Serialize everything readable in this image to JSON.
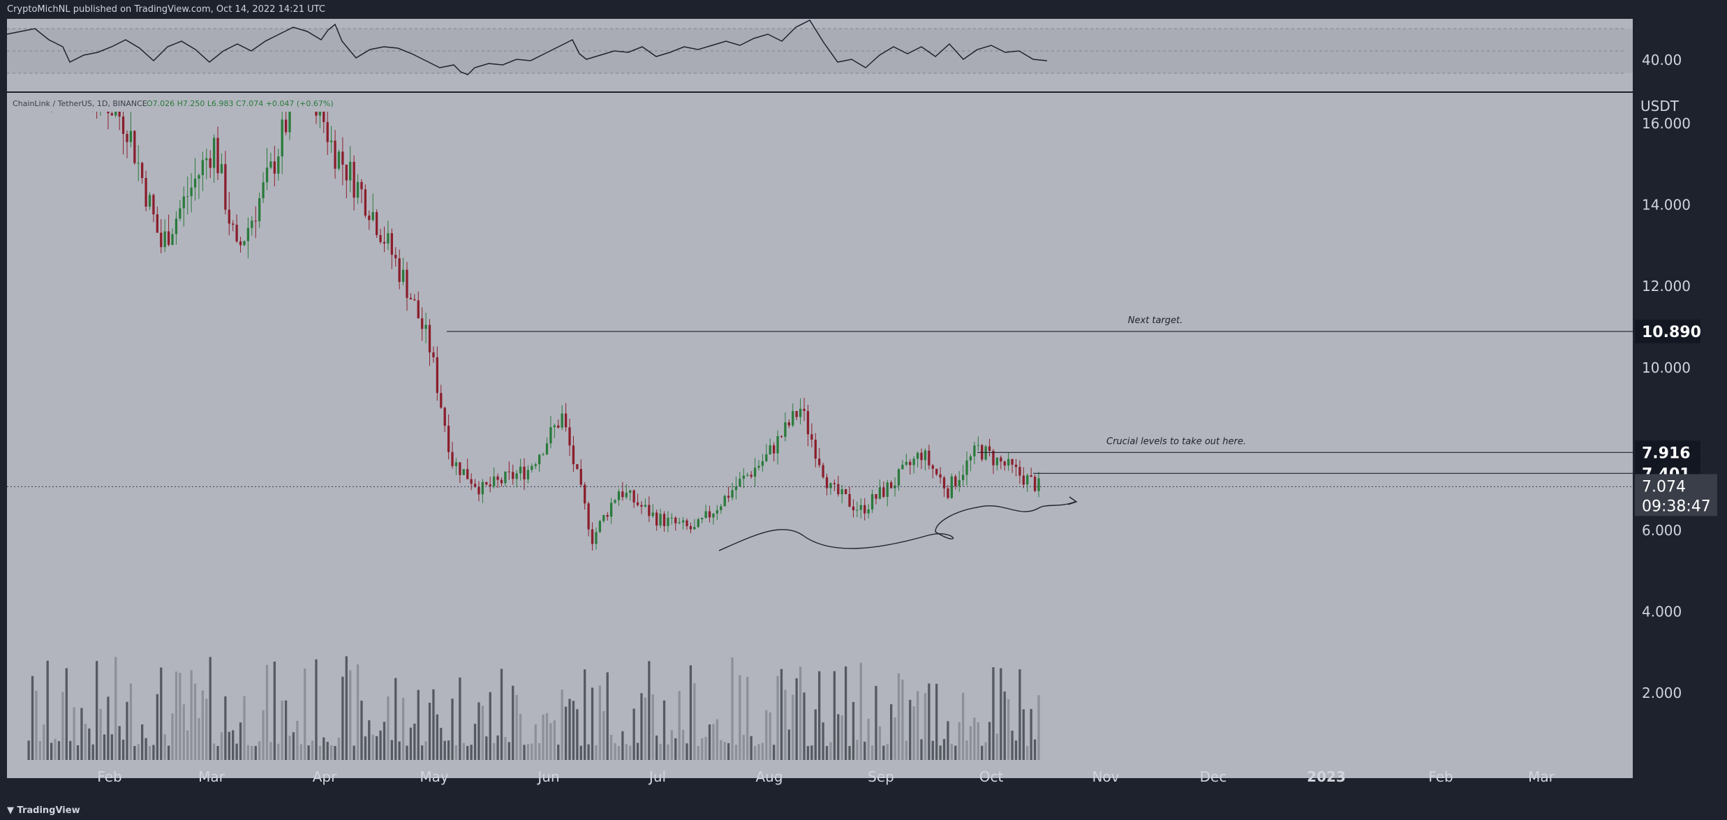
{
  "header": {
    "publish_line": "CryptoMichNL published on TradingView.com, Oct 14, 2022 14:21 UTC"
  },
  "footer": {
    "brand": "TradingView"
  },
  "colors": {
    "background": "#b2b5be",
    "frame": "#1e222d",
    "up": "#2a7a3c",
    "down": "#8b1e2c",
    "volume_dark": "#555960",
    "volume_light": "#8d9099",
    "line": "#1e222d"
  },
  "legend": {
    "symbol": "ChainLink / TetherUS, 1D, BINANCE",
    "ohlc": "O7.026  H7.250  L6.983  C7.074  +0.047 (+0.67%)"
  },
  "rsi": {
    "label": "40.00"
  },
  "chart_data": {
    "type": "candlestick",
    "title": "ChainLink / TetherUS",
    "ylabel": "USDT",
    "ylim": [
      0,
      16.6
    ],
    "yticks": [
      "16.000",
      "14.000",
      "12.000",
      "10.000",
      "6.000",
      "4.000",
      "2.000"
    ],
    "xticks": [
      "Feb",
      "Mar",
      "Apr",
      "May",
      "Jun",
      "Jul",
      "Aug",
      "Sep",
      "Oct",
      "Nov",
      "Dec",
      "2023",
      "Feb",
      "Mar"
    ],
    "approx_closes": [
      {
        "date": "2022-01-20",
        "close": 17.0
      },
      {
        "date": "2022-02-01",
        "close": 17.5
      },
      {
        "date": "2022-02-15",
        "close": 16.0
      },
      {
        "date": "2022-02-24",
        "close": 13.0
      },
      {
        "date": "2022-03-10",
        "close": 15.5
      },
      {
        "date": "2022-03-16",
        "close": 12.8
      },
      {
        "date": "2022-03-25",
        "close": 14.8
      },
      {
        "date": "2022-04-03",
        "close": 17.5
      },
      {
        "date": "2022-04-10",
        "close": 15.5
      },
      {
        "date": "2022-04-20",
        "close": 14.0
      },
      {
        "date": "2022-04-30",
        "close": 12.0
      },
      {
        "date": "2022-05-06",
        "close": 10.5
      },
      {
        "date": "2022-05-12",
        "close": 7.7
      },
      {
        "date": "2022-05-20",
        "close": 7.0
      },
      {
        "date": "2022-06-01",
        "close": 7.5
      },
      {
        "date": "2022-06-10",
        "close": 8.8
      },
      {
        "date": "2022-06-18",
        "close": 5.8
      },
      {
        "date": "2022-06-25",
        "close": 7.0
      },
      {
        "date": "2022-07-05",
        "close": 6.3
      },
      {
        "date": "2022-07-15",
        "close": 6.0
      },
      {
        "date": "2022-07-25",
        "close": 7.0
      },
      {
        "date": "2022-08-03",
        "close": 7.8
      },
      {
        "date": "2022-08-12",
        "close": 9.0
      },
      {
        "date": "2022-08-20",
        "close": 7.0
      },
      {
        "date": "2022-08-28",
        "close": 6.5
      },
      {
        "date": "2022-09-06",
        "close": 7.2
      },
      {
        "date": "2022-09-13",
        "close": 7.9
      },
      {
        "date": "2022-09-20",
        "close": 7.0
      },
      {
        "date": "2022-09-28",
        "close": 8.0
      },
      {
        "date": "2022-10-05",
        "close": 7.6
      },
      {
        "date": "2022-10-14",
        "close": 7.074
      }
    ],
    "horizontal_levels": [
      {
        "value": 10.89,
        "label": "10.890",
        "annotation": "Next target."
      },
      {
        "value": 7.916,
        "label": "7.916",
        "annotation": "Crucial levels to take out here."
      },
      {
        "value": 7.401,
        "label": "7.401",
        "annotation": ""
      }
    ],
    "current_price": {
      "value": 7.074,
      "label": "7.074",
      "countdown": "09:38:47"
    }
  }
}
